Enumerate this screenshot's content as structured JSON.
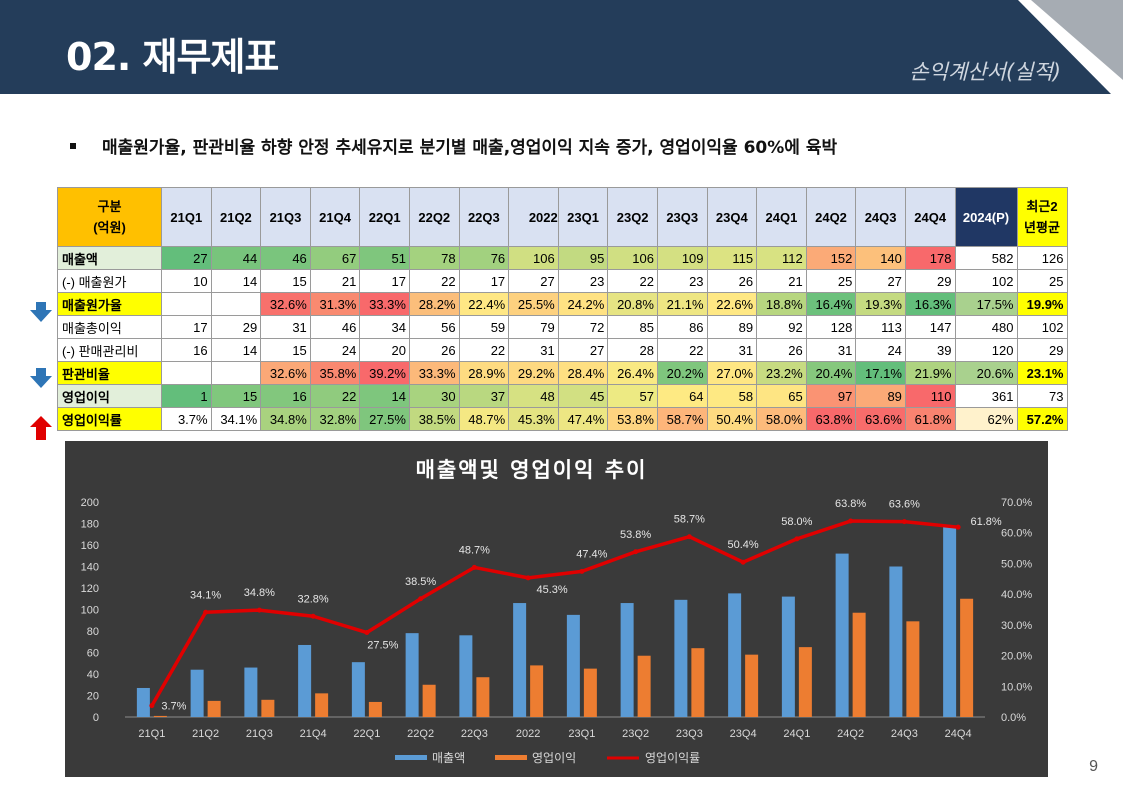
{
  "header": {
    "title": "02. 재무제표",
    "subtitle": "손익계산서(실적)"
  },
  "bullet": "매출원가율, 판관비율 하향 안정 추세유지로 분기별 매출,영업이익   지속 증가, 영업이익율 60%에 육박",
  "table": {
    "corner_line1": "구분",
    "corner_line2": "(억원)",
    "periods": [
      "21Q1",
      "21Q2",
      "21Q3",
      "21Q4",
      "22Q1",
      "22Q2",
      "22Q3",
      "2022",
      "23Q1",
      "23Q2",
      "23Q3",
      "23Q4",
      "24Q1",
      "24Q2",
      "24Q3",
      "24Q4"
    ],
    "col_2024": "2024(P)",
    "col_avg_line1": "최근2",
    "col_avg_line2": "년평균",
    "rows": [
      {
        "label": "매출액",
        "bold": true,
        "label_bg": "#e2efda",
        "values": [
          "27",
          "44",
          "46",
          "67",
          "51",
          "78",
          "76",
          "106",
          "95",
          "106",
          "109",
          "115",
          "112",
          "152",
          "140",
          "178"
        ],
        "colors": [
          "#63be7b",
          "#78c47c",
          "#7ac57d",
          "#93cc7e",
          "#7fc67d",
          "#a4d27f",
          "#a2d17f",
          "#d0df82",
          "#c2da81",
          "#d0df82",
          "#d4e082",
          "#dce382",
          "#d8e282",
          "#fbaa77",
          "#fcc07b",
          "#f8696b"
        ],
        "v2024": "582",
        "avg": "126",
        "v2024_bg": "#ffffff",
        "avg_bg": "#ffffff"
      },
      {
        "label": "(-) 매출원가",
        "bold": false,
        "label_bg": "#ffffff",
        "values": [
          "10",
          "14",
          "15",
          "21",
          "17",
          "22",
          "17",
          "27",
          "23",
          "22",
          "23",
          "26",
          "21",
          "25",
          "27",
          "29"
        ],
        "colors": [],
        "v2024": "102",
        "avg": "25",
        "v2024_bg": "#ffffff",
        "avg_bg": "#ffffff"
      },
      {
        "label": "매출원가율",
        "bold": true,
        "label_bg": "#ffff00",
        "values": [
          "",
          "",
          "32.6%",
          "31.3%",
          "33.3%",
          "28.2%",
          "22.4%",
          "25.5%",
          "24.2%",
          "20.8%",
          "21.1%",
          "22.6%",
          "18.8%",
          "16.4%",
          "19.3%",
          "16.3%"
        ],
        "colors": [
          "#ffffff",
          "#ffffff",
          "#f8716c",
          "#f98a70",
          "#f8696b",
          "#fbbe7b",
          "#ffe784",
          "#fdd17f",
          "#ffe283",
          "#e6e483",
          "#eee683",
          "#ffe884",
          "#b7d680",
          "#6cc17c",
          "#c4da81",
          "#63be7b"
        ],
        "v2024": "17.5%",
        "avg": "19.9%",
        "v2024_bg": "#a9d18e",
        "avg_bg": "#ffff00",
        "avg_bold": true
      },
      {
        "label": "매출총이익",
        "bold": false,
        "label_bg": "#ffffff",
        "values": [
          "17",
          "29",
          "31",
          "46",
          "34",
          "56",
          "59",
          "79",
          "72",
          "85",
          "86",
          "89",
          "92",
          "128",
          "113",
          "147"
        ],
        "colors": [],
        "v2024": "480",
        "avg": "102",
        "v2024_bg": "#ffffff",
        "avg_bg": "#ffffff"
      },
      {
        "label": "(-) 판매관리비",
        "bold": false,
        "label_bg": "#ffffff",
        "values": [
          "16",
          "14",
          "15",
          "24",
          "20",
          "26",
          "22",
          "31",
          "27",
          "28",
          "22",
          "31",
          "26",
          "31",
          "24",
          "39"
        ],
        "colors": [],
        "v2024": "120",
        "avg": "29",
        "v2024_bg": "#ffffff",
        "avg_bg": "#ffffff"
      },
      {
        "label": "판관비율",
        "bold": true,
        "label_bg": "#ffff00",
        "values": [
          "",
          "",
          "32.6%",
          "35.8%",
          "39.2%",
          "33.3%",
          "28.9%",
          "29.2%",
          "28.4%",
          "26.4%",
          "20.2%",
          "27.0%",
          "23.2%",
          "20.4%",
          "17.1%",
          "21.9%"
        ],
        "colors": [
          "#ffffff",
          "#ffffff",
          "#fba877",
          "#f98870",
          "#f8696b",
          "#fcb97a",
          "#fedb81",
          "#fed981",
          "#fedf82",
          "#f9e983",
          "#7fc67d",
          "#fee683",
          "#c7db81",
          "#86c87d",
          "#63be7b",
          "#aed380"
        ],
        "v2024": "20.6%",
        "avg": "23.1%",
        "v2024_bg": "#a9d18e",
        "avg_bg": "#ffff00",
        "avg_bold": true
      },
      {
        "label": "영업이익",
        "bold": true,
        "label_bg": "#e2efda",
        "values": [
          "1",
          "15",
          "16",
          "22",
          "14",
          "30",
          "37",
          "48",
          "45",
          "57",
          "64",
          "58",
          "65",
          "97",
          "89",
          "110"
        ],
        "colors": [
          "#63be7b",
          "#80c77d",
          "#82c77d",
          "#90cb7e",
          "#7ec67d",
          "#a8d37f",
          "#b9d880",
          "#d6e182",
          "#d2e082",
          "#edea83",
          "#feea83",
          "#fee983",
          "#fee583",
          "#fa9373",
          "#fbaa77",
          "#f8696b"
        ],
        "v2024": "361",
        "avg": "73",
        "v2024_bg": "#ffffff",
        "avg_bg": "#ffffff"
      },
      {
        "label": "영업이익률",
        "bold": true,
        "label_bg": "#ffff00",
        "values": [
          "3.7%",
          "34.1%",
          "34.8%",
          "32.8%",
          "27.5%",
          "38.5%",
          "48.7%",
          "45.3%",
          "47.4%",
          "53.8%",
          "58.7%",
          "50.4%",
          "58.0%",
          "63.8%",
          "63.6%",
          "61.8%"
        ],
        "colors": [
          "#ffffff",
          "#ffffff",
          "#a9d27f",
          "#a2d17f",
          "#7fc67d",
          "#c1d980",
          "#f4e883",
          "#e3e382",
          "#ede683",
          "#fed480",
          "#fdb57a",
          "#feda81",
          "#fdbb7b",
          "#f8696b",
          "#f86c6b",
          "#f98370"
        ],
        "v2024": "62%",
        "avg": "57.2%",
        "v2024_bg": "#fff2cc",
        "avg_bg": "#ffff00",
        "avg_bold": true
      }
    ]
  },
  "chart_data": {
    "type": "bar",
    "title": "매출액및 영업이익 추이",
    "categories": [
      "21Q1",
      "21Q2",
      "21Q3",
      "21Q4",
      "22Q1",
      "22Q2",
      "22Q3",
      "2022",
      "23Q1",
      "23Q2",
      "23Q3",
      "23Q4",
      "24Q1",
      "24Q2",
      "24Q3",
      "24Q4"
    ],
    "series": [
      {
        "name": "매출액",
        "type": "bar",
        "axis": "left",
        "color": "#5b9bd5",
        "values": [
          27,
          44,
          46,
          67,
          51,
          78,
          76,
          106,
          95,
          106,
          109,
          115,
          112,
          152,
          140,
          178
        ]
      },
      {
        "name": "영업이익",
        "type": "bar",
        "axis": "left",
        "color": "#ed7d31",
        "values": [
          1,
          15,
          16,
          22,
          14,
          30,
          37,
          48,
          45,
          57,
          64,
          58,
          65,
          97,
          89,
          110
        ]
      },
      {
        "name": "영업이익률",
        "type": "line",
        "axis": "right",
        "color": "#e00000",
        "values": [
          3.7,
          34.1,
          34.8,
          32.8,
          27.5,
          38.5,
          48.7,
          45.3,
          47.4,
          53.8,
          58.7,
          50.4,
          58.0,
          63.8,
          63.6,
          61.8
        ],
        "labels": [
          "3.7%",
          "34.1%",
          "34.8%",
          "32.8%",
          "27.5%",
          "38.5%",
          "48.7%",
          "45.3%",
          "47.4%",
          "53.8%",
          "58.7%",
          "50.4%",
          "58.0%",
          "63.8%",
          "63.6%",
          "61.8%"
        ]
      }
    ],
    "y_left": {
      "min": 0,
      "max": 200,
      "step": 20,
      "ticks": [
        "0",
        "20",
        "40",
        "60",
        "80",
        "100",
        "120",
        "140",
        "160",
        "180",
        "200"
      ]
    },
    "y_right": {
      "min": 0,
      "max": 70,
      "step": 10,
      "ticks": [
        "0.0%",
        "10.0%",
        "20.0%",
        "30.0%",
        "40.0%",
        "50.0%",
        "60.0%",
        "70.0%"
      ]
    },
    "grid": false,
    "legend": "bottom"
  },
  "page_number": "9",
  "colors": {
    "header_bg": "#243d5a",
    "chart_bg": "#3a3a3a",
    "arrow_down": "#2e75b6",
    "arrow_up": "#e00000"
  }
}
